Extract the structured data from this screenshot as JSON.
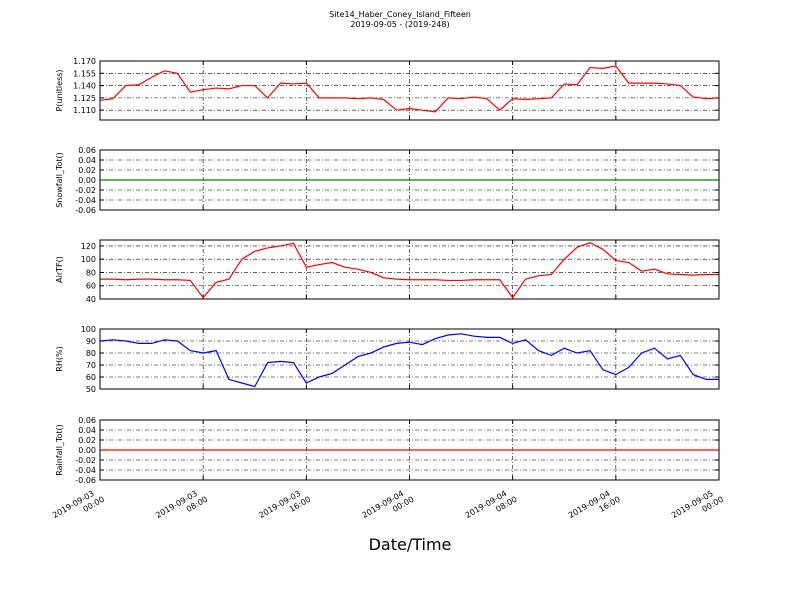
{
  "title": "Site14_Haber_Coney_Island_Fifteen",
  "subtitle": "2019-09-05 - (2019-248)",
  "xlabel": "Date/Time",
  "chart_data": [
    {
      "type": "line",
      "ylabel": "P(unitless)",
      "grid": true,
      "xlim": [
        "2019-09-03 00:00",
        "2019-09-05 00:00"
      ],
      "xticks": [
        "2019-09-03 00:00",
        "2019-09-03 08:00",
        "2019-09-03 16:00",
        "2019-09-04 00:00",
        "2019-09-04 08:00",
        "2019-09-04 16:00",
        "2019-09-05 00:00"
      ],
      "ylim": [
        1.098,
        1.17
      ],
      "yticks": [
        {
          "value": 1.11,
          "label": "1.110"
        },
        {
          "value": 1.125,
          "label": "1.125"
        },
        {
          "value": 1.14,
          "label": "1.140"
        },
        {
          "value": 1.155,
          "label": "1.155"
        },
        {
          "value": 1.17,
          "label": "1.170"
        }
      ],
      "x": [
        "2019-09-03 00:00",
        "2019-09-03 01:00",
        "2019-09-03 02:00",
        "2019-09-03 03:00",
        "2019-09-03 04:00",
        "2019-09-03 05:00",
        "2019-09-03 06:00",
        "2019-09-03 07:00",
        "2019-09-03 08:00",
        "2019-09-03 09:00",
        "2019-09-03 10:00",
        "2019-09-03 11:00",
        "2019-09-03 12:00",
        "2019-09-03 13:00",
        "2019-09-03 14:00",
        "2019-09-03 15:00",
        "2019-09-03 16:00",
        "2019-09-03 17:00",
        "2019-09-03 18:00",
        "2019-09-03 19:00",
        "2019-09-03 20:00",
        "2019-09-03 21:00",
        "2019-09-03 22:00",
        "2019-09-03 23:00",
        "2019-09-04 00:00",
        "2019-09-04 01:00",
        "2019-09-04 02:00",
        "2019-09-04 03:00",
        "2019-09-04 04:00",
        "2019-09-04 05:00",
        "2019-09-04 06:00",
        "2019-09-04 07:00",
        "2019-09-04 08:00",
        "2019-09-04 09:00",
        "2019-09-04 10:00",
        "2019-09-04 11:00",
        "2019-09-04 12:00",
        "2019-09-04 13:00",
        "2019-09-04 14:00",
        "2019-09-04 15:00",
        "2019-09-04 16:00",
        "2019-09-04 17:00",
        "2019-09-04 18:00",
        "2019-09-04 19:00",
        "2019-09-04 20:00",
        "2019-09-04 21:00",
        "2019-09-04 22:00",
        "2019-09-04 23:00",
        "2019-09-05 00:00"
      ],
      "series": [
        {
          "name": "P",
          "color": "#ff0000",
          "values": [
            1.122,
            1.124,
            1.14,
            1.141,
            1.15,
            1.158,
            1.155,
            1.132,
            1.135,
            1.137,
            1.136,
            1.14,
            1.14,
            1.125,
            1.143,
            1.142,
            1.143,
            1.125,
            1.125,
            1.125,
            1.124,
            1.125,
            1.123,
            1.11,
            1.112,
            1.11,
            1.108,
            1.125,
            1.124,
            1.126,
            1.124,
            1.11,
            1.124,
            1.123,
            1.124,
            1.125,
            1.142,
            1.141,
            1.162,
            1.161,
            1.164,
            1.143,
            1.143,
            1.143,
            1.142,
            1.14,
            1.126,
            1.124,
            1.125
          ]
        }
      ]
    },
    {
      "type": "line",
      "ylabel": "Snowfall_Tot()",
      "grid": true,
      "xlim": [
        "2019-09-03 00:00",
        "2019-09-05 00:00"
      ],
      "xticks": [
        "2019-09-03 00:00",
        "2019-09-03 08:00",
        "2019-09-03 16:00",
        "2019-09-04 00:00",
        "2019-09-04 08:00",
        "2019-09-04 16:00",
        "2019-09-05 00:00"
      ],
      "ylim": [
        -0.06,
        0.06
      ],
      "yticks": [
        -0.06,
        -0.04,
        -0.02,
        {
          "value": 0,
          "label": "0.00"
        },
        0.02,
        0.04,
        0.06
      ],
      "x": [
        "2019-09-03 00:00",
        "2019-09-05 00:00"
      ],
      "series": [
        {
          "name": "Snowfall_Tot",
          "color": "#008000",
          "values": [
            0,
            0
          ]
        }
      ]
    },
    {
      "type": "line",
      "ylabel": "AirTF()",
      "grid": true,
      "xlim": [
        "2019-09-03 00:00",
        "2019-09-05 00:00"
      ],
      "xticks": [
        "2019-09-03 00:00",
        "2019-09-03 08:00",
        "2019-09-03 16:00",
        "2019-09-04 00:00",
        "2019-09-04 08:00",
        "2019-09-04 16:00",
        "2019-09-05 00:00"
      ],
      "ylim": [
        40,
        129
      ],
      "yticks": [
        40,
        60,
        80,
        100,
        120
      ],
      "x": [
        "2019-09-03 00:00",
        "2019-09-03 01:00",
        "2019-09-03 02:00",
        "2019-09-03 03:00",
        "2019-09-03 04:00",
        "2019-09-03 05:00",
        "2019-09-03 06:00",
        "2019-09-03 07:00",
        "2019-09-03 08:00",
        "2019-09-03 09:00",
        "2019-09-03 10:00",
        "2019-09-03 11:00",
        "2019-09-03 12:00",
        "2019-09-03 13:00",
        "2019-09-03 14:00",
        "2019-09-03 15:00",
        "2019-09-03 16:00",
        "2019-09-03 17:00",
        "2019-09-03 18:00",
        "2019-09-03 19:00",
        "2019-09-03 20:00",
        "2019-09-03 21:00",
        "2019-09-03 22:00",
        "2019-09-03 23:00",
        "2019-09-04 00:00",
        "2019-09-04 01:00",
        "2019-09-04 02:00",
        "2019-09-04 03:00",
        "2019-09-04 04:00",
        "2019-09-04 05:00",
        "2019-09-04 06:00",
        "2019-09-04 07:00",
        "2019-09-04 08:00",
        "2019-09-04 09:00",
        "2019-09-04 10:00",
        "2019-09-04 11:00",
        "2019-09-04 12:00",
        "2019-09-04 13:00",
        "2019-09-04 14:00",
        "2019-09-04 15:00",
        "2019-09-04 16:00",
        "2019-09-04 17:00",
        "2019-09-04 18:00",
        "2019-09-04 19:00",
        "2019-09-04 20:00",
        "2019-09-04 21:00",
        "2019-09-04 22:00",
        "2019-09-04 23:00",
        "2019-09-05 00:00"
      ],
      "series": [
        {
          "name": "AirTF",
          "color": "#ff0000",
          "values": [
            70,
            70,
            69,
            70,
            70,
            69,
            69,
            68,
            42,
            65,
            70,
            100,
            112,
            117,
            120,
            124,
            88,
            92,
            95,
            88,
            85,
            80,
            72,
            70,
            69,
            69,
            69,
            68,
            68,
            69,
            69,
            69,
            42,
            70,
            75,
            77,
            100,
            118,
            125,
            115,
            98,
            95,
            82,
            85,
            78,
            77,
            76,
            77,
            77
          ]
        }
      ]
    },
    {
      "type": "line",
      "ylabel": "RH(%)",
      "grid": true,
      "xlim": [
        "2019-09-03 00:00",
        "2019-09-05 00:00"
      ],
      "xticks": [
        "2019-09-03 00:00",
        "2019-09-03 08:00",
        "2019-09-03 16:00",
        "2019-09-04 00:00",
        "2019-09-04 08:00",
        "2019-09-04 16:00",
        "2019-09-05 00:00"
      ],
      "ylim": [
        50,
        100
      ],
      "yticks": [
        50,
        60,
        70,
        80,
        90,
        100
      ],
      "x": [
        "2019-09-03 00:00",
        "2019-09-03 01:00",
        "2019-09-03 02:00",
        "2019-09-03 03:00",
        "2019-09-03 04:00",
        "2019-09-03 05:00",
        "2019-09-03 06:00",
        "2019-09-03 07:00",
        "2019-09-03 08:00",
        "2019-09-03 09:00",
        "2019-09-03 10:00",
        "2019-09-03 11:00",
        "2019-09-03 12:00",
        "2019-09-03 13:00",
        "2019-09-03 14:00",
        "2019-09-03 15:00",
        "2019-09-03 16:00",
        "2019-09-03 17:00",
        "2019-09-03 18:00",
        "2019-09-03 19:00",
        "2019-09-03 20:00",
        "2019-09-03 21:00",
        "2019-09-03 22:00",
        "2019-09-03 23:00",
        "2019-09-04 00:00",
        "2019-09-04 01:00",
        "2019-09-04 02:00",
        "2019-09-04 03:00",
        "2019-09-04 04:00",
        "2019-09-04 05:00",
        "2019-09-04 06:00",
        "2019-09-04 07:00",
        "2019-09-04 08:00",
        "2019-09-04 09:00",
        "2019-09-04 10:00",
        "2019-09-04 11:00",
        "2019-09-04 12:00",
        "2019-09-04 13:00",
        "2019-09-04 14:00",
        "2019-09-04 15:00",
        "2019-09-04 16:00",
        "2019-09-04 17:00",
        "2019-09-04 18:00",
        "2019-09-04 19:00",
        "2019-09-04 20:00",
        "2019-09-04 21:00",
        "2019-09-04 22:00",
        "2019-09-04 23:00",
        "2019-09-05 00:00"
      ],
      "series": [
        {
          "name": "RH",
          "color": "#0000ff",
          "values": [
            90,
            91,
            90,
            88,
            88,
            91,
            90,
            82,
            80,
            82,
            58,
            55,
            52,
            72,
            73,
            72,
            55,
            60,
            63,
            70,
            77,
            80,
            85,
            88,
            89,
            87,
            92,
            95,
            96,
            94,
            93,
            93,
            88,
            91,
            82,
            78,
            84,
            80,
            82,
            66,
            62,
            68,
            80,
            84,
            75,
            78,
            62,
            58,
            58
          ]
        }
      ]
    },
    {
      "type": "line",
      "ylabel": "Rainfall_Tot()",
      "grid": true,
      "xlim": [
        "2019-09-03 00:00",
        "2019-09-05 00:00"
      ],
      "xticks": [
        "2019-09-03 00:00",
        "2019-09-03 08:00",
        "2019-09-03 16:00",
        "2019-09-04 00:00",
        "2019-09-04 08:00",
        "2019-09-04 16:00",
        "2019-09-05 00:00"
      ],
      "ylim": [
        -0.06,
        0.06
      ],
      "yticks": [
        -0.06,
        -0.04,
        -0.02,
        {
          "value": 0,
          "label": "0.00"
        },
        0.02,
        0.04,
        0.06
      ],
      "x": [
        "2019-09-03 00:00",
        "2019-09-05 00:00"
      ],
      "series": [
        {
          "name": "Rainfall_Tot",
          "color": "#ff0000",
          "values": [
            0,
            0
          ]
        }
      ]
    }
  ]
}
